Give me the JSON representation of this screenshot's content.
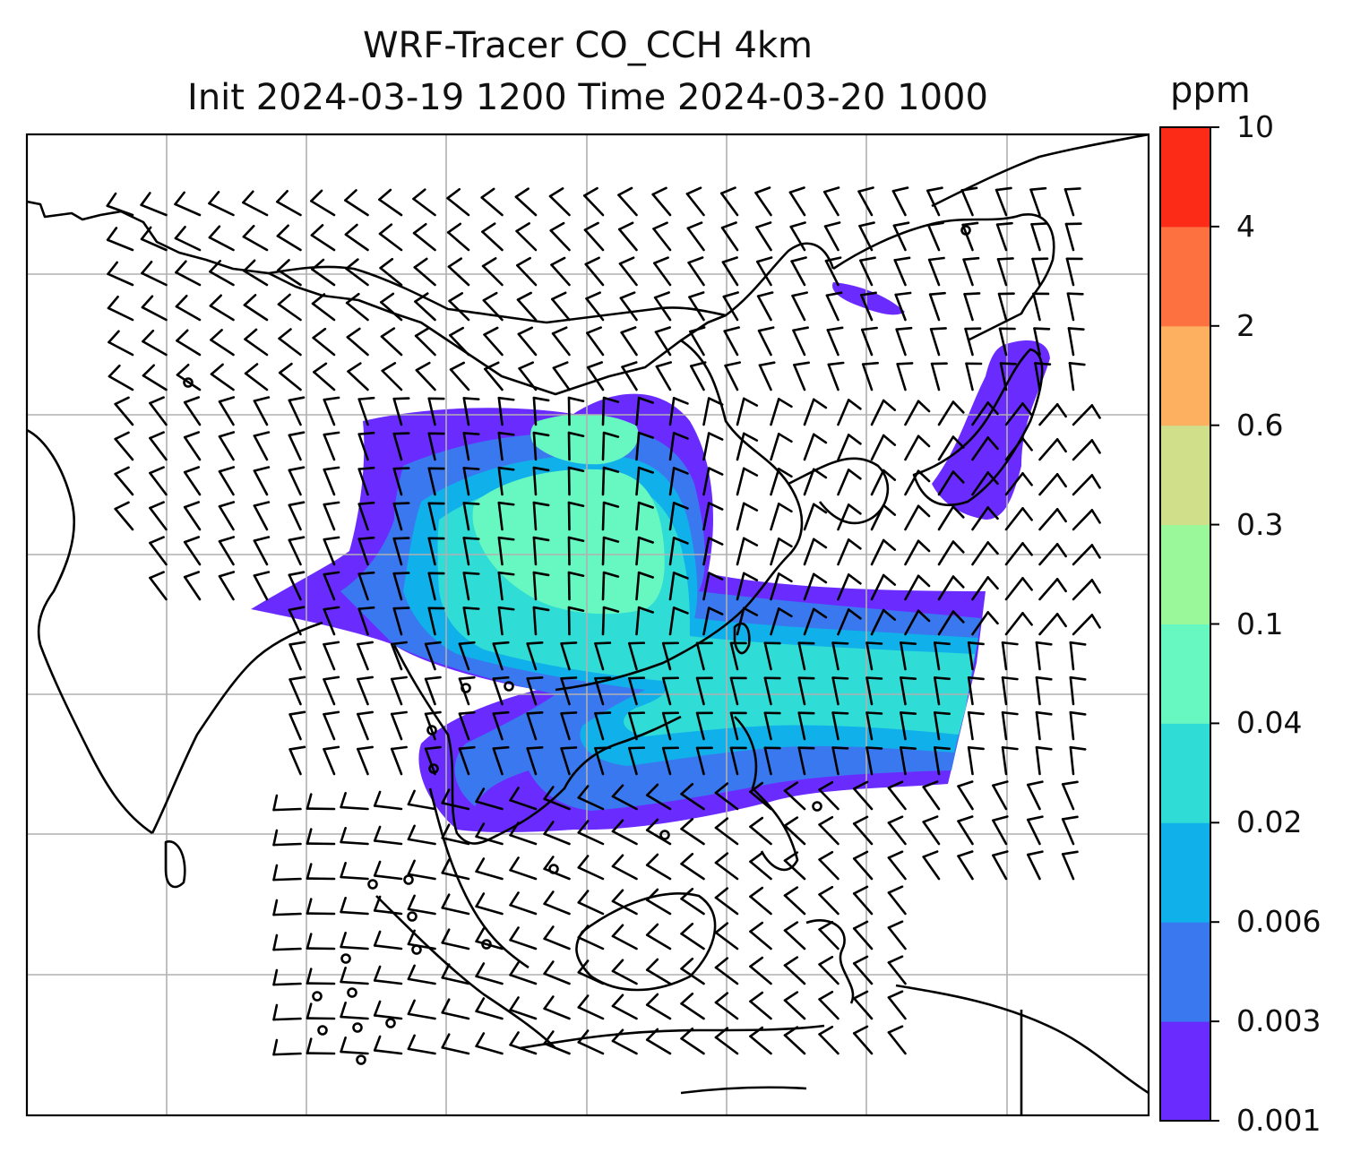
{
  "figure": {
    "title_line1": "WRF-Tracer CO_CCH 4km",
    "title_line2": "Init 2024-03-19 1200 Time 2024-03-20 1000",
    "colorbar_unit": "ppm"
  },
  "map": {
    "variable": "CO_CCH tracer concentration",
    "overlay": "wind barbs",
    "gridlines": true,
    "coastline_color": "#000000",
    "gridline_color": "#b0b0b0",
    "plume_levels": [
      {
        "min": 0.001,
        "color": "#6a2bff"
      },
      {
        "min": 0.003,
        "color": "#3a78f0"
      },
      {
        "min": 0.006,
        "color": "#10b0ea"
      },
      {
        "min": 0.02,
        "color": "#2fdcd6"
      },
      {
        "min": 0.04,
        "color": "#66f8c0"
      }
    ]
  },
  "colorbar": {
    "ticks": [
      "0.001",
      "0.003",
      "0.006",
      "0.02",
      "0.04",
      "0.1",
      "0.3",
      "0.6",
      "2",
      "4",
      "10"
    ],
    "colors": [
      "#6a2bff",
      "#3a78f0",
      "#10b0ea",
      "#2fdcd6",
      "#66f8c0",
      "#9af79a",
      "#d0df8a",
      "#fdb060",
      "#fd7040",
      "#fc2b18"
    ]
  }
}
